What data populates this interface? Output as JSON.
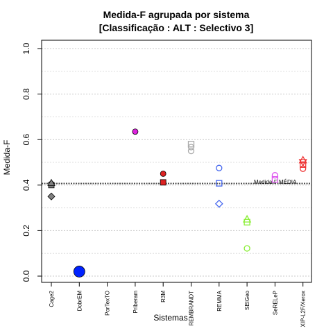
{
  "chart_data": {
    "type": "scatter",
    "title": "Medida-F agrupada por sistema",
    "subtitle": "[Classificação : ALT : Selectivo 3]",
    "xlabel": "Sistemas",
    "ylabel": "Medida-F",
    "ylim": [
      0,
      1
    ],
    "yticks": [
      "0.0",
      "0.2",
      "0.4",
      "0.6",
      "0.8",
      "1.0"
    ],
    "yticks_values": [
      0,
      0.2,
      0.4,
      0.6,
      0.8,
      1.0
    ],
    "minor_grid": [
      0.1,
      0.3,
      0.5,
      0.7,
      0.9
    ],
    "grid": true,
    "categories": [
      "Cage2",
      "DobrEM",
      "PorTexTO",
      "Priberam",
      "R3M",
      "REMBRANDT",
      "REMMA",
      "SEIGeo",
      "SeRELeP",
      "XIP-L2F/Xerox"
    ],
    "reference_line": {
      "label": "Medida-F MÉDIA",
      "value": 0.407
    },
    "points": [
      {
        "system": "Cage2",
        "y": 0.405,
        "shape": "circle",
        "filled": true,
        "color": "#808080"
      },
      {
        "system": "Cage2",
        "y": 0.4,
        "shape": "square",
        "filled": true,
        "color": "#808080"
      },
      {
        "system": "Cage2",
        "y": 0.41,
        "shape": "triangle",
        "filled": true,
        "color": "#808080"
      },
      {
        "system": "Cage2",
        "y": 0.35,
        "shape": "diamond",
        "filled": true,
        "color": "#808080"
      },
      {
        "system": "DobrEM",
        "y": 0.02,
        "shape": "circle",
        "filled": true,
        "color": "#0022ff",
        "size": "large"
      },
      {
        "system": "Priberam",
        "y": 0.635,
        "shape": "circle",
        "filled": true,
        "color": "#dd22dd"
      },
      {
        "system": "R3M",
        "y": 0.45,
        "shape": "circle",
        "filled": true,
        "color": "#dd2222"
      },
      {
        "system": "R3M",
        "y": 0.412,
        "shape": "square",
        "filled": true,
        "color": "#dd2222"
      },
      {
        "system": "REMBRANDT",
        "y": 0.55,
        "shape": "circle",
        "filled": false,
        "color": "#aaaaaa"
      },
      {
        "system": "REMBRANDT",
        "y": 0.567,
        "shape": "circle",
        "filled": false,
        "color": "#aaaaaa"
      },
      {
        "system": "REMBRANDT",
        "y": 0.58,
        "shape": "square",
        "filled": false,
        "color": "#aaaaaa"
      },
      {
        "system": "REMMA",
        "y": 0.475,
        "shape": "circle",
        "filled": false,
        "color": "#4466ee"
      },
      {
        "system": "REMMA",
        "y": 0.408,
        "shape": "square",
        "filled": false,
        "color": "#4466ee"
      },
      {
        "system": "REMMA",
        "y": 0.318,
        "shape": "diamond",
        "filled": false,
        "color": "#4466ee"
      },
      {
        "system": "SEIGeo",
        "y": 0.25,
        "shape": "triangle",
        "filled": false,
        "color": "#88ee33"
      },
      {
        "system": "SEIGeo",
        "y": 0.237,
        "shape": "square",
        "filled": false,
        "color": "#88ee33"
      },
      {
        "system": "SEIGeo",
        "y": 0.122,
        "shape": "circle",
        "filled": false,
        "color": "#88ee33"
      },
      {
        "system": "SeRELeP",
        "y": 0.443,
        "shape": "circle",
        "filled": false,
        "color": "#dd55ee"
      },
      {
        "system": "SeRELeP",
        "y": 0.425,
        "shape": "square",
        "filled": false,
        "color": "#dd55ee"
      },
      {
        "system": "XIP-L2F/Xerox",
        "y": 0.51,
        "shape": "triangle",
        "filled": false,
        "color": "#ee3333"
      },
      {
        "system": "XIP-L2F/Xerox",
        "y": 0.5,
        "shape": "triangle-down",
        "filled": false,
        "color": "#ee3333"
      },
      {
        "system": "XIP-L2F/Xerox",
        "y": 0.49,
        "shape": "square",
        "filled": false,
        "color": "#ee3333"
      },
      {
        "system": "XIP-L2F/Xerox",
        "y": 0.472,
        "shape": "circle",
        "filled": false,
        "color": "#ee3333"
      }
    ]
  }
}
